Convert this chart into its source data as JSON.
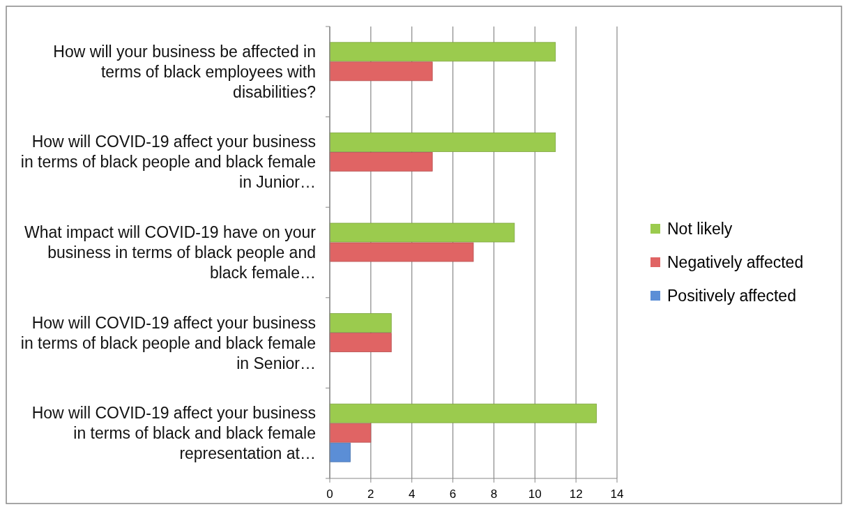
{
  "chart_data": {
    "type": "bar",
    "orientation": "horizontal",
    "categories": [
      "How will your business be affected in terms of black employees with disabilities?",
      "How will COVID-19 affect your business in terms of black people and black female in Junior…",
      "What impact will COVID-19 have on your business in terms of black people and black female…",
      "How will COVID-19 affect your business in terms of black people and black female in Senior…",
      "How will COVID-19 affect your business in terms of black and black female representation at…"
    ],
    "series": [
      {
        "name": "Not likely",
        "color": "#9bcb4e",
        "values": [
          11,
          11,
          9,
          3,
          13
        ]
      },
      {
        "name": "Negatively affected",
        "color": "#e06464",
        "values": [
          5,
          5,
          7,
          3,
          2
        ]
      },
      {
        "name": "Positively affected",
        "color": "#5b8ed6",
        "values": [
          0,
          0,
          0,
          0,
          1
        ]
      }
    ],
    "xlim": [
      0,
      14
    ],
    "xticks": [
      0,
      2,
      4,
      6,
      8,
      10,
      12,
      14
    ],
    "grid": "x",
    "legend": "right"
  }
}
